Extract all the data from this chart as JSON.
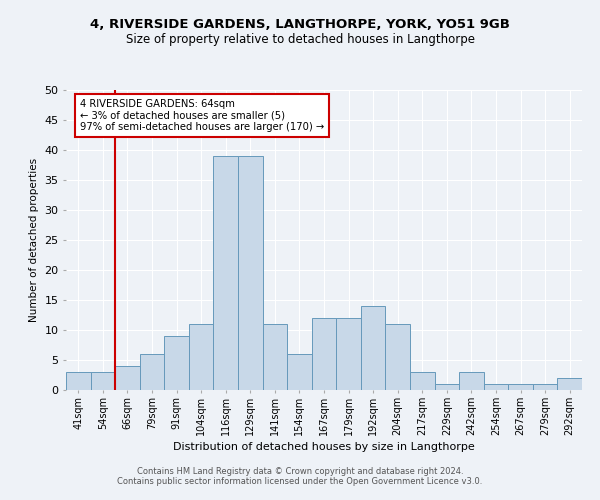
{
  "title1": "4, RIVERSIDE GARDENS, LANGTHORPE, YORK, YO51 9GB",
  "title2": "Size of property relative to detached houses in Langthorpe",
  "xlabel": "Distribution of detached houses by size in Langthorpe",
  "ylabel": "Number of detached properties",
  "bins": [
    "41sqm",
    "54sqm",
    "66sqm",
    "79sqm",
    "91sqm",
    "104sqm",
    "116sqm",
    "129sqm",
    "141sqm",
    "154sqm",
    "167sqm",
    "179sqm",
    "192sqm",
    "204sqm",
    "217sqm",
    "229sqm",
    "242sqm",
    "254sqm",
    "267sqm",
    "279sqm",
    "292sqm"
  ],
  "values": [
    3,
    3,
    4,
    6,
    9,
    11,
    39,
    39,
    11,
    6,
    12,
    12,
    14,
    11,
    3,
    1,
    3,
    1,
    1,
    1,
    2
  ],
  "bar_color": "#c8d8e8",
  "bar_edge_color": "#6699bb",
  "annotation_lines": [
    "4 RIVERSIDE GARDENS: 64sqm",
    "← 3% of detached houses are smaller (5)",
    "97% of semi-detached houses are larger (170) →"
  ],
  "annotation_color": "#cc0000",
  "vline_pos": 1.5,
  "ylim": [
    0,
    50
  ],
  "yticks": [
    0,
    5,
    10,
    15,
    20,
    25,
    30,
    35,
    40,
    45,
    50
  ],
  "background_color": "#eef2f7",
  "grid_color": "#ffffff",
  "footer1": "Contains HM Land Registry data © Crown copyright and database right 2024.",
  "footer2": "Contains public sector information licensed under the Open Government Licence v3.0."
}
